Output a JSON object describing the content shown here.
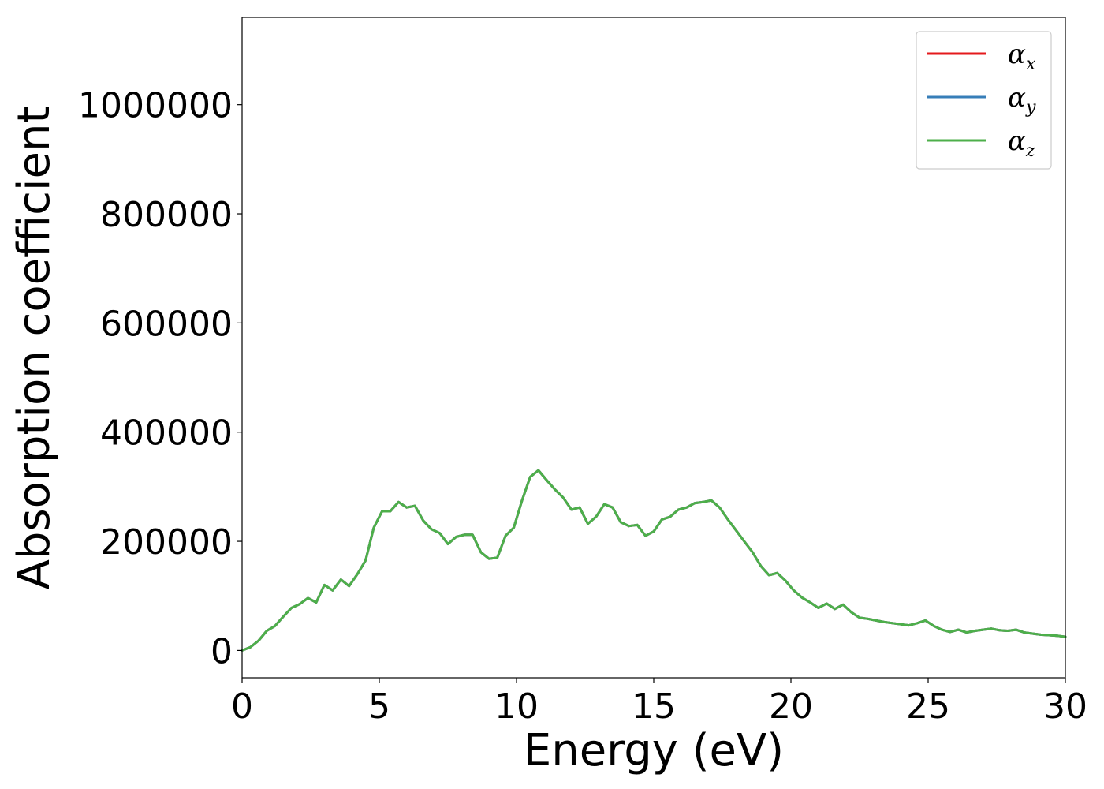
{
  "chart_data": {
    "type": "line",
    "xlabel": "Energy (eV)",
    "ylabel": "Absorption coefficient",
    "xlim": [
      0,
      30
    ],
    "ylim": [
      -50000,
      1160000
    ],
    "xticks": [
      0,
      5,
      10,
      15,
      20,
      25,
      30
    ],
    "xtick_labels": [
      "0",
      "5",
      "10",
      "15",
      "20",
      "25",
      "30"
    ],
    "yticks": [
      0,
      200000,
      400000,
      600000,
      800000,
      1000000
    ],
    "ytick_labels": [
      "0",
      "200000",
      "400000",
      "600000",
      "800000",
      "1000000"
    ],
    "grid": false,
    "legend_position": "top-right",
    "x": [
      0,
      0.3,
      0.6,
      0.9,
      1.2,
      1.5,
      1.8,
      2.1,
      2.4,
      2.7,
      3.0,
      3.3,
      3.6,
      3.9,
      4.2,
      4.5,
      4.8,
      5.1,
      5.4,
      5.7,
      6.0,
      6.3,
      6.6,
      6.9,
      7.2,
      7.5,
      7.8,
      8.1,
      8.4,
      8.7,
      9.0,
      9.3,
      9.6,
      9.9,
      10.2,
      10.5,
      10.8,
      11.1,
      11.4,
      11.7,
      12.0,
      12.3,
      12.6,
      12.9,
      13.2,
      13.5,
      13.8,
      14.1,
      14.4,
      14.7,
      15.0,
      15.3,
      15.6,
      15.9,
      16.2,
      16.5,
      16.8,
      17.1,
      17.4,
      17.7,
      18.0,
      18.3,
      18.6,
      18.9,
      19.2,
      19.5,
      19.8,
      20.1,
      20.4,
      20.7,
      21.0,
      21.3,
      21.6,
      21.9,
      22.2,
      22.5,
      22.8,
      23.1,
      23.4,
      23.7,
      24.0,
      24.3,
      24.6,
      24.9,
      25.2,
      25.5,
      25.8,
      26.1,
      26.4,
      26.7,
      27.0,
      27.3,
      27.6,
      27.9,
      28.2,
      28.5,
      28.8,
      29.1,
      29.4,
      29.7,
      30.0
    ],
    "series": [
      {
        "name": "α_x",
        "color": "#e41a1c",
        "values": [
          0,
          6000,
          18000,
          36000,
          45000,
          62000,
          78000,
          85000,
          96000,
          88000,
          120000,
          110000,
          130000,
          118000,
          140000,
          165000,
          225000,
          255000,
          255000,
          272000,
          262000,
          265000,
          238000,
          222000,
          215000,
          195000,
          208000,
          212000,
          212000,
          180000,
          168000,
          170000,
          210000,
          225000,
          275000,
          318000,
          330000,
          312000,
          295000,
          280000,
          258000,
          262000,
          232000,
          245000,
          268000,
          262000,
          235000,
          228000,
          230000,
          210000,
          218000,
          240000,
          245000,
          258000,
          262000,
          270000,
          272000,
          275000,
          262000,
          240000,
          220000,
          200000,
          180000,
          155000,
          138000,
          142000,
          128000,
          110000,
          97000,
          88000,
          78000,
          86000,
          76000,
          84000,
          70000,
          60000,
          58000,
          55000,
          52000,
          50000,
          48000,
          46000,
          50000,
          55000,
          45000,
          38000,
          34000,
          38000,
          33000,
          36000,
          38000,
          40000,
          37000,
          36000,
          38000,
          33000,
          31000,
          29000,
          28000,
          27000,
          25000
        ]
      },
      {
        "name": "α_y",
        "color": "#377eb8",
        "values": [
          0,
          6000,
          18000,
          36000,
          45000,
          62000,
          78000,
          85000,
          96000,
          88000,
          120000,
          110000,
          130000,
          118000,
          140000,
          165000,
          225000,
          255000,
          255000,
          272000,
          262000,
          265000,
          238000,
          222000,
          215000,
          195000,
          208000,
          212000,
          212000,
          180000,
          168000,
          170000,
          210000,
          225000,
          275000,
          318000,
          330000,
          312000,
          295000,
          280000,
          258000,
          262000,
          232000,
          245000,
          268000,
          262000,
          235000,
          228000,
          230000,
          210000,
          218000,
          240000,
          245000,
          258000,
          262000,
          270000,
          272000,
          275000,
          262000,
          240000,
          220000,
          200000,
          180000,
          155000,
          138000,
          142000,
          128000,
          110000,
          97000,
          88000,
          78000,
          86000,
          76000,
          84000,
          70000,
          60000,
          58000,
          55000,
          52000,
          50000,
          48000,
          46000,
          50000,
          55000,
          45000,
          38000,
          34000,
          38000,
          33000,
          36000,
          38000,
          40000,
          37000,
          36000,
          38000,
          33000,
          31000,
          29000,
          28000,
          27000,
          25000
        ]
      },
      {
        "name": "α_z",
        "color": "#4daf4a",
        "values": [
          0,
          6000,
          18000,
          36000,
          45000,
          62000,
          78000,
          85000,
          96000,
          88000,
          120000,
          110000,
          130000,
          118000,
          140000,
          165000,
          225000,
          255000,
          255000,
          272000,
          262000,
          265000,
          238000,
          222000,
          215000,
          195000,
          208000,
          212000,
          212000,
          180000,
          168000,
          170000,
          210000,
          225000,
          275000,
          318000,
          330000,
          312000,
          295000,
          280000,
          258000,
          262000,
          232000,
          245000,
          268000,
          262000,
          235000,
          228000,
          230000,
          210000,
          218000,
          240000,
          245000,
          258000,
          262000,
          270000,
          272000,
          275000,
          262000,
          240000,
          220000,
          200000,
          180000,
          155000,
          138000,
          142000,
          128000,
          110000,
          97000,
          88000,
          78000,
          86000,
          76000,
          84000,
          70000,
          60000,
          58000,
          55000,
          52000,
          50000,
          48000,
          46000,
          50000,
          55000,
          45000,
          38000,
          34000,
          38000,
          33000,
          36000,
          38000,
          40000,
          37000,
          36000,
          38000,
          33000,
          31000,
          29000,
          28000,
          27000,
          25000
        ]
      }
    ],
    "legend": [
      {
        "symbol": "α",
        "subscript": "x",
        "color": "#e41a1c"
      },
      {
        "symbol": "α",
        "subscript": "y",
        "color": "#377eb8"
      },
      {
        "symbol": "α",
        "subscript": "z",
        "color": "#4daf4a"
      }
    ]
  }
}
